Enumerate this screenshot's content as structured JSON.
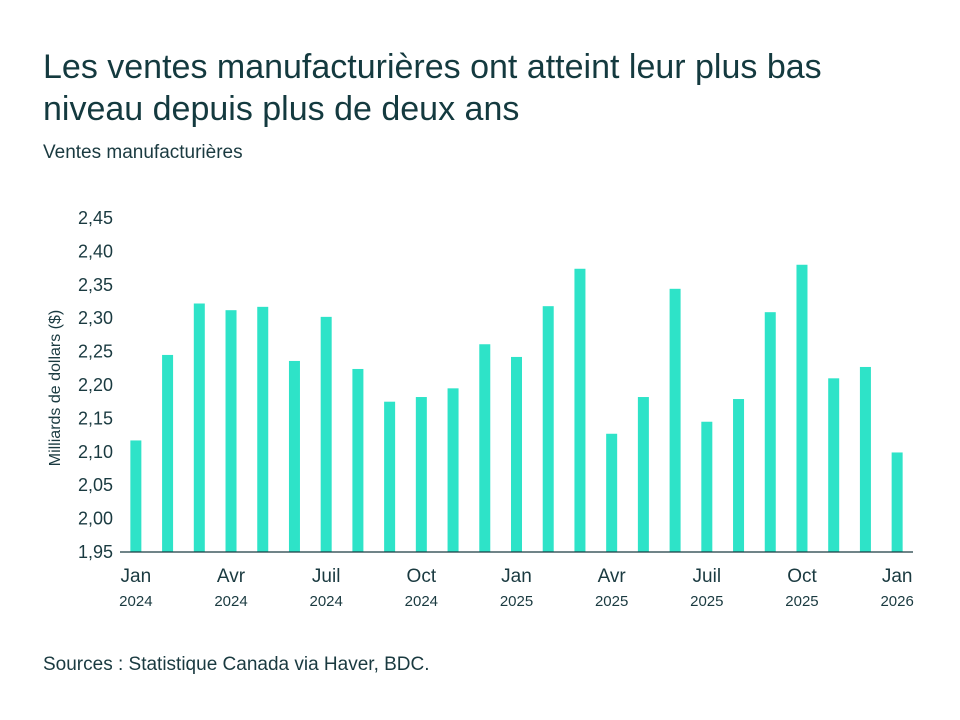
{
  "chart_data": {
    "type": "bar",
    "title": "Les ventes manufacturières ont atteint leur plus bas niveau depuis plus de deux ans",
    "subtitle": "Ventes manufacturières",
    "ylabel": "Milliards de dollars ($)",
    "xlabel": "",
    "ylim": [
      1.95,
      2.45
    ],
    "yticks": [
      "1,95",
      "2,00",
      "2,05",
      "2,10",
      "2,15",
      "2,20",
      "2,25",
      "2,30",
      "2,35",
      "2,40",
      "2,45"
    ],
    "categories": [
      "2024-01",
      "2024-02",
      "2024-03",
      "2024-04",
      "2024-05",
      "2024-06",
      "2024-07",
      "2024-08",
      "2024-09",
      "2024-10",
      "2024-11",
      "2024-12",
      "2025-01",
      "2025-02",
      "2025-03",
      "2025-04",
      "2025-05",
      "2025-06",
      "2025-07",
      "2025-08",
      "2025-09",
      "2025-10",
      "2025-11",
      "2025-12",
      "2026-01"
    ],
    "values": [
      2.117,
      2.245,
      2.322,
      2.312,
      2.317,
      2.236,
      2.302,
      2.224,
      2.175,
      2.182,
      2.195,
      2.261,
      2.242,
      2.318,
      2.374,
      2.127,
      2.182,
      2.344,
      2.145,
      2.179,
      2.309,
      2.38,
      2.21,
      2.227,
      2.099
    ],
    "xticks": [
      {
        "index": 0,
        "month": "Jan",
        "year": "2024"
      },
      {
        "index": 3,
        "month": "Avr",
        "year": "2024"
      },
      {
        "index": 6,
        "month": "Juil",
        "year": "2024"
      },
      {
        "index": 9,
        "month": "Oct",
        "year": "2024"
      },
      {
        "index": 12,
        "month": "Jan",
        "year": "2025"
      },
      {
        "index": 15,
        "month": "Avr",
        "year": "2025"
      },
      {
        "index": 18,
        "month": "Juil",
        "year": "2025"
      },
      {
        "index": 21,
        "month": "Oct",
        "year": "2025"
      },
      {
        "index": 24,
        "month": "Jan",
        "year": "2026"
      }
    ],
    "bar_color": "#2ee3c8",
    "grid": false
  },
  "source": "Sources : Statistique Canada via Haver, BDC."
}
